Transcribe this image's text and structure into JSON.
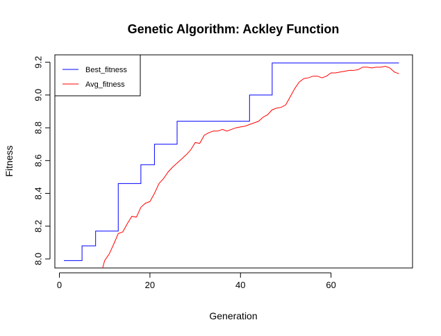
{
  "chart_data": {
    "type": "line",
    "title": "Genetic Algorithm: Ackley Function",
    "xlabel": "Generation",
    "ylabel": "Fitness",
    "xlim": [
      -1,
      78
    ],
    "ylim": [
      7.945,
      9.245
    ],
    "x_ticks": [
      0,
      20,
      40,
      60
    ],
    "y_ticks": [
      8.0,
      8.2,
      8.4,
      8.6,
      8.8,
      9.0,
      9.2
    ],
    "x_tick_labels": [
      "0",
      "20",
      "40",
      "60"
    ],
    "y_tick_labels": [
      "8.0",
      "8.2",
      "8.4",
      "8.6",
      "8.8",
      "9.0",
      "9.2"
    ],
    "legend_position": "top-left",
    "grid": false,
    "series": [
      {
        "name": "Best_fitness",
        "color": "#0000ff",
        "step": true,
        "points": [
          [
            1,
            7.99
          ],
          [
            4,
            7.99
          ],
          [
            5,
            8.08
          ],
          [
            7,
            8.08
          ],
          [
            8,
            8.17
          ],
          [
            10,
            8.17
          ],
          [
            13,
            8.46
          ],
          [
            17,
            8.46
          ],
          [
            18,
            8.575
          ],
          [
            20,
            8.575
          ],
          [
            21,
            8.7
          ],
          [
            25,
            8.7
          ],
          [
            26,
            8.84
          ],
          [
            41,
            8.84
          ],
          [
            42,
            9.0
          ],
          [
            46,
            9.0
          ],
          [
            47,
            9.195
          ],
          [
            75,
            9.195
          ]
        ]
      },
      {
        "name": "Avg_fitness",
        "color": "#ff0000",
        "step": false,
        "points": [
          [
            9.5,
            7.94
          ],
          [
            10,
            7.99
          ],
          [
            11,
            8.03
          ],
          [
            12,
            8.09
          ],
          [
            13,
            8.155
          ],
          [
            14,
            8.165
          ],
          [
            15,
            8.215
          ],
          [
            16,
            8.26
          ],
          [
            17,
            8.255
          ],
          [
            18,
            8.315
          ],
          [
            19,
            8.34
          ],
          [
            20,
            8.35
          ],
          [
            21,
            8.4
          ],
          [
            22,
            8.46
          ],
          [
            23,
            8.49
          ],
          [
            24,
            8.53
          ],
          [
            25,
            8.56
          ],
          [
            26,
            8.585
          ],
          [
            27,
            8.61
          ],
          [
            28,
            8.635
          ],
          [
            29,
            8.665
          ],
          [
            30,
            8.71
          ],
          [
            31,
            8.705
          ],
          [
            32,
            8.755
          ],
          [
            33,
            8.77
          ],
          [
            34,
            8.78
          ],
          [
            35,
            8.78
          ],
          [
            36,
            8.79
          ],
          [
            37,
            8.78
          ],
          [
            38,
            8.79
          ],
          [
            39,
            8.8
          ],
          [
            40,
            8.805
          ],
          [
            41,
            8.81
          ],
          [
            42,
            8.82
          ],
          [
            43,
            8.83
          ],
          [
            44,
            8.84
          ],
          [
            45,
            8.865
          ],
          [
            46,
            8.88
          ],
          [
            47,
            8.91
          ],
          [
            48,
            8.92
          ],
          [
            49,
            8.925
          ],
          [
            50,
            8.94
          ],
          [
            51,
            8.99
          ],
          [
            52,
            9.04
          ],
          [
            53,
            9.08
          ],
          [
            54,
            9.1
          ],
          [
            55,
            9.105
          ],
          [
            56,
            9.115
          ],
          [
            57,
            9.115
          ],
          [
            58,
            9.105
          ],
          [
            59,
            9.115
          ],
          [
            60,
            9.135
          ],
          [
            61,
            9.135
          ],
          [
            62,
            9.14
          ],
          [
            63,
            9.145
          ],
          [
            64,
            9.15
          ],
          [
            65,
            9.15
          ],
          [
            66,
            9.155
          ],
          [
            67,
            9.17
          ],
          [
            68,
            9.17
          ],
          [
            69,
            9.165
          ],
          [
            70,
            9.17
          ],
          [
            71,
            9.17
          ],
          [
            72,
            9.175
          ],
          [
            73,
            9.165
          ],
          [
            74,
            9.14
          ],
          [
            75,
            9.13
          ]
        ]
      }
    ]
  }
}
